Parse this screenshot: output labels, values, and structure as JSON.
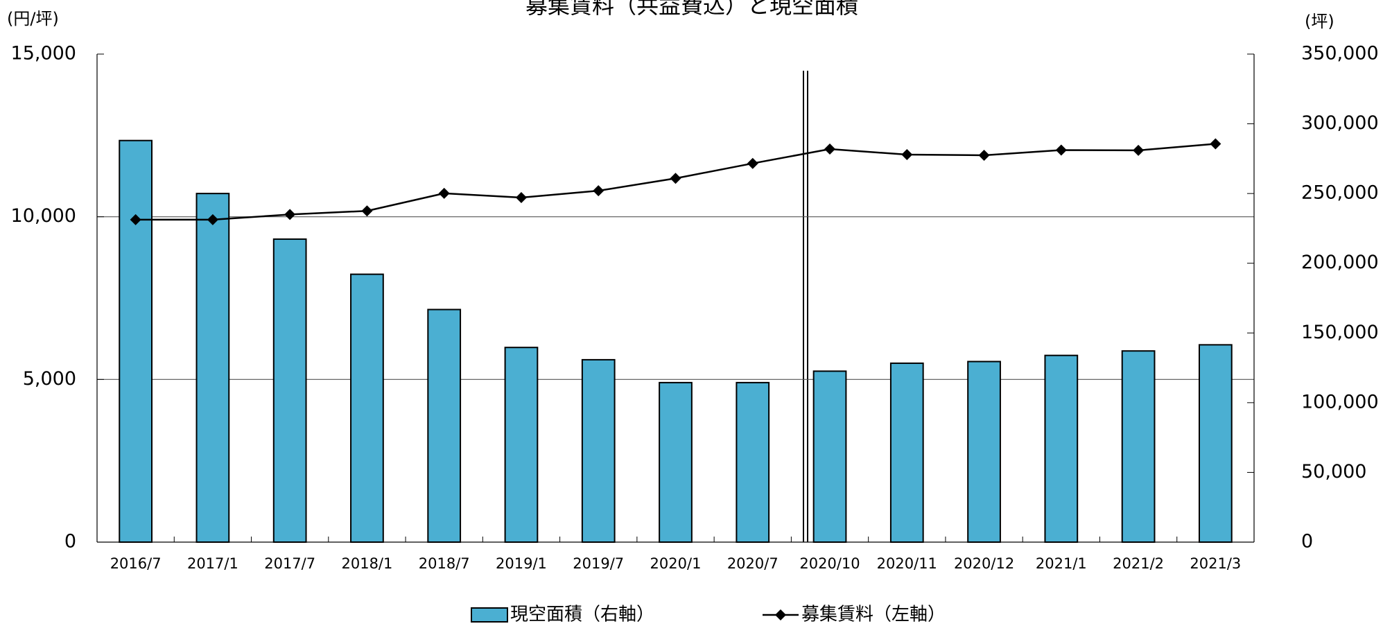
{
  "chart_data": {
    "type": "combo",
    "title": "募集賃料（共益費込）と現空面積",
    "y_label": "(円/坪)",
    "y2_label": "(坪)",
    "categories": [
      "2016/7",
      "2017/1",
      "2017/7",
      "2018/1",
      "2018/7",
      "2019/1",
      "2019/7",
      "2020/1",
      "2020/7",
      "2020/10",
      "2020/11",
      "2020/12",
      "2021/1",
      "2021/2",
      "2021/3"
    ],
    "series": [
      {
        "name": "現空面積（右軸）",
        "type": "bar",
        "axis": "y2",
        "color": "#4bafd2",
        "values": [
          288000,
          250000,
          217300,
          192100,
          166800,
          139600,
          130800,
          114400,
          114400,
          122600,
          128300,
          129500,
          133900,
          137100,
          141500
        ]
      },
      {
        "name": "募集賃料（左軸）",
        "type": "line",
        "axis": "y",
        "color": "#000000",
        "values": [
          9910,
          9910,
          10070,
          10180,
          10720,
          10590,
          10800,
          11180,
          11640,
          12080,
          11910,
          11890,
          12050,
          12040,
          12240
        ]
      }
    ],
    "ylim": [
      0,
      15000
    ],
    "yticks": [
      0,
      {
        "value": 5000,
        "label": "5,000"
      },
      {
        "value": 10000,
        "label": "10,000"
      },
      {
        "value": 15000,
        "label": "15,000"
      }
    ],
    "y2lim": [
      0,
      350000
    ],
    "y2ticks": [
      0,
      {
        "value": 50000,
        "label": "50,000"
      },
      {
        "value": 100000,
        "label": "100,000"
      },
      {
        "value": 150000,
        "label": "150,000"
      },
      {
        "value": 200000,
        "label": "200,000"
      },
      {
        "value": 250000,
        "label": "250,000"
      },
      {
        "value": 300000,
        "label": "300,000"
      },
      {
        "value": 350000,
        "label": "350,000"
      }
    ],
    "grid": true
  }
}
